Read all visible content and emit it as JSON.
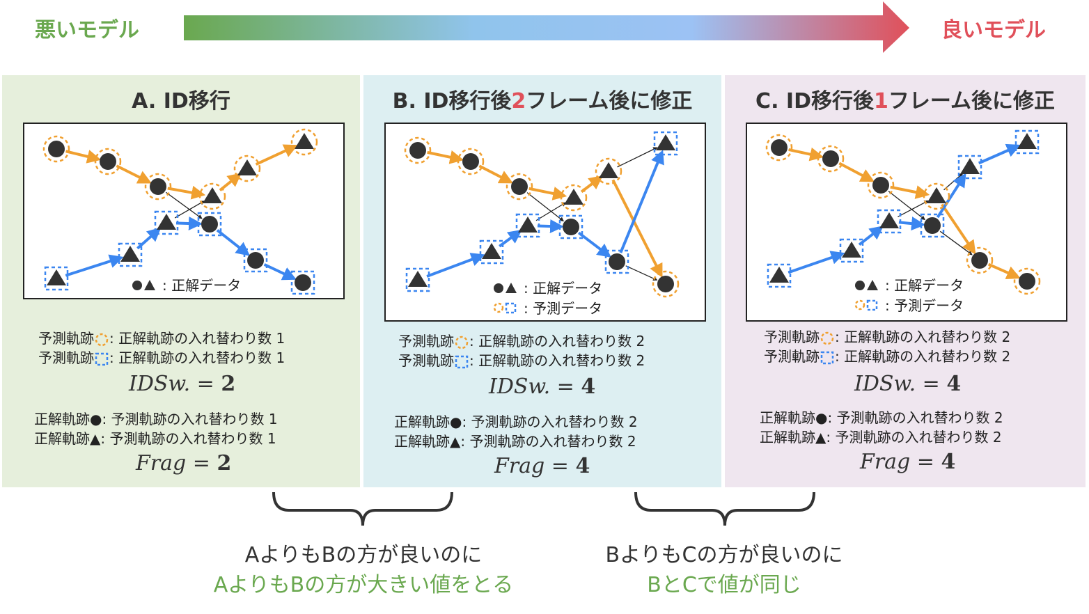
{
  "scale": {
    "left_label": "悪いモデル",
    "right_label": "良いモデル",
    "left_color": "#6aa84f",
    "right_color": "#e0505a"
  },
  "panels": [
    {
      "title_prefix": "A. ID移行",
      "title_highlight": "",
      "title_suffix": "",
      "bg": "#e6efdc",
      "legend_gt": ": 正解データ",
      "legend_pred": ": 予測データ",
      "pred_lines": [
        {
          "prefix": "予測軌跡",
          "icon": "circle",
          "text": ": 正解軌跡の入れ替わり数",
          "count": "1"
        },
        {
          "prefix": "予測軌跡",
          "icon": "square",
          "text": ": 正解軌跡の入れ替わり数",
          "count": "1"
        }
      ],
      "idsw_label": "IDSw. =",
      "idsw_value": "2",
      "gt_lines": [
        {
          "prefix": "正解軌跡●",
          "text": ": 予測軌跡の入れ替わり数",
          "count": "1"
        },
        {
          "prefix": "正解軌跡▲",
          "text": ": 予測軌跡の入れ替わり数",
          "count": "1"
        }
      ],
      "frag_label": "Frag =",
      "frag_value": "2"
    },
    {
      "title_prefix": "B. ID移行後",
      "title_highlight": "2",
      "title_suffix": "フレーム後に修正",
      "bg": "#ddeff2",
      "legend_gt": ": 正解データ",
      "legend_pred": ": 予測データ",
      "pred_lines": [
        {
          "prefix": "予測軌跡",
          "icon": "circle",
          "text": ": 正解軌跡の入れ替わり数",
          "count": "2"
        },
        {
          "prefix": "予測軌跡",
          "icon": "square",
          "text": ": 正解軌跡の入れ替わり数",
          "count": "2"
        }
      ],
      "idsw_label": "IDSw. =",
      "idsw_value": "4",
      "gt_lines": [
        {
          "prefix": "正解軌跡●",
          "text": ": 予測軌跡の入れ替わり数",
          "count": "2"
        },
        {
          "prefix": "正解軌跡▲",
          "text": ": 予測軌跡の入れ替わり数",
          "count": "2"
        }
      ],
      "frag_label": "Frag =",
      "frag_value": "4"
    },
    {
      "title_prefix": "C. ID移行後",
      "title_highlight": "1",
      "title_suffix": "フレーム後に修正",
      "bg": "#efe6ef",
      "legend_gt": ": 正解データ",
      "legend_pred": ": 予測データ",
      "pred_lines": [
        {
          "prefix": "予測軌跡",
          "icon": "circle",
          "text": ": 正解軌跡の入れ替わり数",
          "count": "2"
        },
        {
          "prefix": "予測軌跡",
          "icon": "square",
          "text": ": 正解軌跡の入れ替わり数",
          "count": "2"
        }
      ],
      "idsw_label": "IDSw. =",
      "idsw_value": "4",
      "gt_lines": [
        {
          "prefix": "正解軌跡●",
          "text": ": 予測軌跡の入れ替わり数",
          "count": "2"
        },
        {
          "prefix": "正解軌跡▲",
          "text": ": 予測軌跡の入れ替わり数",
          "count": "2"
        }
      ],
      "frag_label": "Frag =",
      "frag_value": "4"
    }
  ],
  "comparisons": [
    {
      "line1": "AよりもBの方が良いのに",
      "line2": "AよりもBの方が大きい値をとる"
    },
    {
      "line1": "BよりもCの方が良いのに",
      "line2": "BとCで値が同じ"
    }
  ],
  "colors": {
    "orange": "#f0a030",
    "blue": "#3b86f0",
    "dark": "#333333",
    "red": "#e0505a",
    "green": "#6aa84f"
  }
}
